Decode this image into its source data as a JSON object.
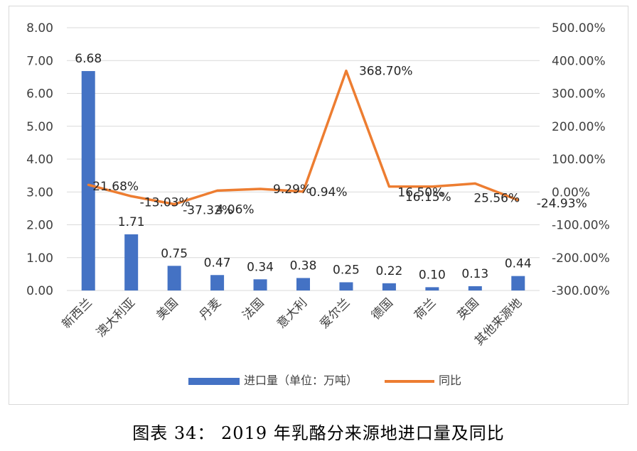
{
  "chart_data": {
    "type": "bar+line",
    "categories": [
      "新西兰",
      "澳大利亚",
      "美国",
      "丹麦",
      "法国",
      "意大利",
      "爱尔兰",
      "德国",
      "荷兰",
      "英国",
      "其他来源地"
    ],
    "series": [
      {
        "name": "进口量（单位：万吨）",
        "type": "bar",
        "axis": "left",
        "values": [
          6.68,
          1.71,
          0.75,
          0.47,
          0.34,
          0.38,
          0.25,
          0.22,
          0.1,
          0.13,
          0.44
        ],
        "labels": [
          "6.68",
          "1.71",
          "0.75",
          "0.47",
          "0.34",
          "0.38",
          "0.25",
          "0.22",
          "0.10",
          "0.13",
          "0.44"
        ],
        "color": "#4472c4"
      },
      {
        "name": "同比",
        "type": "line",
        "axis": "right",
        "values": [
          21.68,
          -13.03,
          -37.32,
          4.06,
          9.29,
          0.94,
          368.7,
          16.5,
          16.15,
          25.56,
          -24.93
        ],
        "labels": [
          "21.68%",
          "-13.03%",
          "-37.32%",
          "4.06%",
          "9.29%",
          "0.94%",
          "368.70%",
          "16.50%",
          "16.15%",
          "25.56%",
          "-24.93%"
        ],
        "color": "#ed7d31"
      }
    ],
    "y_left": {
      "min": 0,
      "max": 8,
      "step": 1,
      "tick_labels": [
        "0.00",
        "1.00",
        "2.00",
        "3.00",
        "4.00",
        "5.00",
        "6.00",
        "7.00",
        "8.00"
      ]
    },
    "y_right": {
      "min": -300,
      "max": 500,
      "step": 100,
      "tick_labels": [
        "-300.00%",
        "-200.00%",
        "-100.00%",
        "0.00%",
        "100.00%",
        "200.00%",
        "300.00%",
        "400.00%",
        "500.00%"
      ]
    },
    "grid": true,
    "legend": "bottom",
    "title": ""
  },
  "caption": "图表 34：   2019 年乳酪分来源地进口量及同比"
}
